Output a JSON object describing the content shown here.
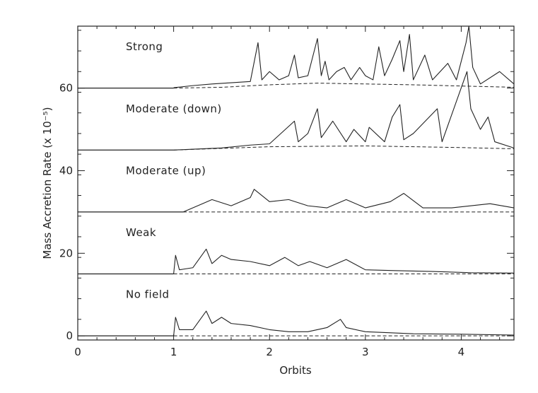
{
  "chart_data": {
    "type": "line",
    "xlabel": "Orbits",
    "ylabel": "Mass Accretion Rate (x 10⁻⁵)",
    "xlim": [
      0,
      4.55
    ],
    "ylim": [
      -1,
      75
    ],
    "xticks": [
      0,
      1,
      2,
      3,
      4
    ],
    "xtick_labels": [
      "0",
      "1",
      "2",
      "3",
      "4"
    ],
    "yticks": [
      0,
      20,
      40,
      60
    ],
    "ytick_labels": [
      "0",
      "20",
      "40",
      "60"
    ],
    "grid": false,
    "panels": [
      {
        "label": "Strong",
        "baseline": 60,
        "onset": 1.0,
        "solid": [
          [
            1.0,
            60.1
          ],
          [
            1.2,
            60.6
          ],
          [
            1.4,
            61.0
          ],
          [
            1.6,
            61.3
          ],
          [
            1.8,
            61.6
          ],
          [
            1.88,
            71.0
          ],
          [
            1.92,
            62.0
          ],
          [
            2.0,
            64.0
          ],
          [
            2.1,
            62.0
          ],
          [
            2.2,
            63.0
          ],
          [
            2.26,
            68.0
          ],
          [
            2.3,
            62.5
          ],
          [
            2.4,
            63.0
          ],
          [
            2.5,
            72.0
          ],
          [
            2.54,
            63.0
          ],
          [
            2.58,
            66.5
          ],
          [
            2.62,
            62.0
          ],
          [
            2.7,
            64.0
          ],
          [
            2.78,
            65.0
          ],
          [
            2.85,
            62.0
          ],
          [
            2.94,
            65.0
          ],
          [
            3.0,
            63.0
          ],
          [
            3.08,
            62.0
          ],
          [
            3.14,
            70.0
          ],
          [
            3.2,
            63.0
          ],
          [
            3.28,
            67.0
          ],
          [
            3.36,
            71.5
          ],
          [
            3.4,
            64.0
          ],
          [
            3.46,
            73.0
          ],
          [
            3.5,
            62.0
          ],
          [
            3.62,
            68.0
          ],
          [
            3.7,
            62.0
          ],
          [
            3.86,
            66.0
          ],
          [
            3.95,
            62.0
          ],
          [
            4.05,
            71.0
          ],
          [
            4.08,
            75.0
          ],
          [
            4.12,
            65.0
          ],
          [
            4.2,
            61.0
          ],
          [
            4.4,
            64.0
          ],
          [
            4.55,
            61.0
          ]
        ],
        "dashed": [
          [
            1.0,
            60.0
          ],
          [
            1.5,
            60.2
          ],
          [
            2.0,
            60.8
          ],
          [
            2.5,
            61.2
          ],
          [
            3.0,
            61.0
          ],
          [
            3.5,
            60.8
          ],
          [
            4.0,
            60.5
          ],
          [
            4.55,
            60.2
          ]
        ]
      },
      {
        "label": "Moderate (down)",
        "baseline": 45,
        "onset": 1.0,
        "solid": [
          [
            1.0,
            45.0
          ],
          [
            1.5,
            45.5
          ],
          [
            1.8,
            46.2
          ],
          [
            2.0,
            46.5
          ],
          [
            2.26,
            52.0
          ],
          [
            2.3,
            47.0
          ],
          [
            2.4,
            49.0
          ],
          [
            2.5,
            55.0
          ],
          [
            2.54,
            48.0
          ],
          [
            2.66,
            52.0
          ],
          [
            2.8,
            47.0
          ],
          [
            2.88,
            50.0
          ],
          [
            3.0,
            47.0
          ],
          [
            3.04,
            50.5
          ],
          [
            3.2,
            47.0
          ],
          [
            3.28,
            53.0
          ],
          [
            3.36,
            56.0
          ],
          [
            3.4,
            47.5
          ],
          [
            3.5,
            49.0
          ],
          [
            3.75,
            55.0
          ],
          [
            3.8,
            47.0
          ],
          [
            4.06,
            64.0
          ],
          [
            4.1,
            55.0
          ],
          [
            4.2,
            50.0
          ],
          [
            4.28,
            53.0
          ],
          [
            4.35,
            47.0
          ],
          [
            4.55,
            45.5
          ]
        ],
        "dashed": [
          [
            1.0,
            45.0
          ],
          [
            2.0,
            45.8
          ],
          [
            3.0,
            46.0
          ],
          [
            4.0,
            45.6
          ],
          [
            4.55,
            45.3
          ]
        ]
      },
      {
        "label": "Moderate (up)",
        "baseline": 30,
        "onset": 1.1,
        "solid": [
          [
            1.1,
            30.0
          ],
          [
            1.3,
            32.0
          ],
          [
            1.4,
            33.0
          ],
          [
            1.6,
            31.5
          ],
          [
            1.8,
            33.5
          ],
          [
            1.84,
            35.5
          ],
          [
            2.0,
            32.5
          ],
          [
            2.2,
            33.0
          ],
          [
            2.4,
            31.5
          ],
          [
            2.6,
            31.0
          ],
          [
            2.8,
            33.0
          ],
          [
            3.0,
            31.0
          ],
          [
            3.26,
            32.5
          ],
          [
            3.4,
            34.5
          ],
          [
            3.6,
            31.0
          ],
          [
            3.9,
            31.0
          ],
          [
            4.3,
            32.0
          ],
          [
            4.55,
            31.0
          ]
        ],
        "dashed": [
          [
            1.1,
            30.0
          ],
          [
            4.55,
            30.0
          ]
        ]
      },
      {
        "label": "Weak",
        "baseline": 15,
        "onset": 1.0,
        "solid": [
          [
            1.0,
            15.0
          ],
          [
            1.02,
            19.5
          ],
          [
            1.06,
            16.0
          ],
          [
            1.2,
            16.5
          ],
          [
            1.34,
            21.0
          ],
          [
            1.4,
            17.5
          ],
          [
            1.5,
            19.5
          ],
          [
            1.6,
            18.5
          ],
          [
            1.8,
            18.0
          ],
          [
            2.0,
            17.0
          ],
          [
            2.16,
            19.0
          ],
          [
            2.3,
            17.0
          ],
          [
            2.42,
            18.0
          ],
          [
            2.6,
            16.5
          ],
          [
            2.8,
            18.5
          ],
          [
            3.0,
            16.0
          ],
          [
            3.3,
            15.8
          ],
          [
            3.7,
            15.6
          ],
          [
            4.1,
            15.3
          ],
          [
            4.55,
            15.2
          ]
        ],
        "dashed": [
          [
            1.0,
            15.0
          ],
          [
            4.55,
            15.0
          ]
        ]
      },
      {
        "label": "No field",
        "baseline": 0,
        "onset": 1.0,
        "solid": [
          [
            1.0,
            0.0
          ],
          [
            1.02,
            4.5
          ],
          [
            1.06,
            1.5
          ],
          [
            1.2,
            1.5
          ],
          [
            1.34,
            6.0
          ],
          [
            1.4,
            3.0
          ],
          [
            1.5,
            4.5
          ],
          [
            1.6,
            3.0
          ],
          [
            1.8,
            2.5
          ],
          [
            2.0,
            1.5
          ],
          [
            2.2,
            1.0
          ],
          [
            2.4,
            1.0
          ],
          [
            2.6,
            2.0
          ],
          [
            2.74,
            4.0
          ],
          [
            2.8,
            2.0
          ],
          [
            3.0,
            1.0
          ],
          [
            3.2,
            0.8
          ],
          [
            3.5,
            0.5
          ],
          [
            4.0,
            0.4
          ],
          [
            4.55,
            0.2
          ]
        ],
        "dashed": [
          [
            1.0,
            0.0
          ],
          [
            4.55,
            0.0
          ]
        ]
      }
    ]
  }
}
